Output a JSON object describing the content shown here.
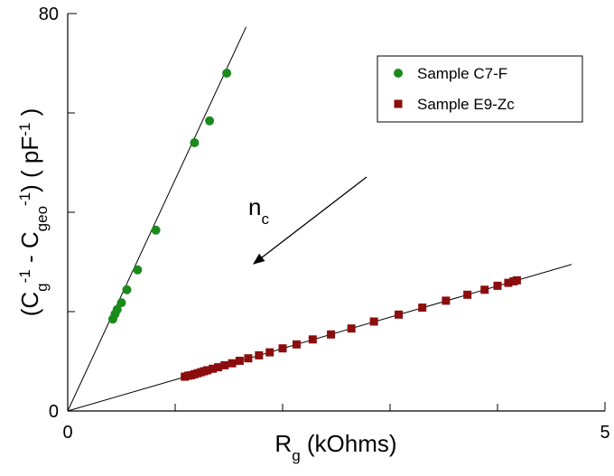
{
  "chart_data": {
    "type": "scatter",
    "xlim": [
      0,
      5
    ],
    "ylim": [
      0,
      80
    ],
    "xticks": [
      0,
      5
    ],
    "yticks": [
      0,
      80
    ],
    "xminor": [
      1,
      2,
      3,
      4
    ],
    "yminor": [
      20,
      40,
      60
    ],
    "xlabel_parts": [
      {
        "text": "R"
      },
      {
        "text": "g",
        "shift": "sub"
      },
      {
        "text": "  (kOhms)"
      }
    ],
    "ylabel_parts": [
      {
        "text": "(C"
      },
      {
        "text": "g",
        "shift": "sub"
      },
      {
        "text": "-1",
        "shift": "super"
      },
      {
        "text": " - C"
      },
      {
        "text": "geo",
        "shift": "sub"
      },
      {
        "text": "-1",
        "shift": "super"
      },
      {
        "text": ")    ( pF"
      },
      {
        "text": "-1",
        "shift": "super"
      },
      {
        "text": " )"
      }
    ],
    "annotation": {
      "text": "n",
      "subscript": "c"
    },
    "legend": "upper right",
    "series": [
      {
        "name": "Sample C7-F",
        "color": "#1a8a1a",
        "marker": "circle",
        "x": [
          0.42,
          0.44,
          0.46,
          0.5,
          0.55,
          0.65,
          0.82,
          1.18,
          1.32,
          1.48
        ],
        "values": [
          18.5,
          19.5,
          20.4,
          21.8,
          24.4,
          28.4,
          36.4,
          54.0,
          58.4,
          68.0
        ],
        "fit": {
          "x": [
            0,
            1.66
          ],
          "y": [
            0,
            77.3
          ]
        }
      },
      {
        "name": "Sample E9-Zc",
        "color": "#8b0d0d",
        "marker": "square",
        "x": [
          1.09,
          1.12,
          1.15,
          1.18,
          1.21,
          1.24,
          1.27,
          1.3,
          1.35,
          1.4,
          1.46,
          1.53,
          1.6,
          1.68,
          1.78,
          1.88,
          2.0,
          2.13,
          2.28,
          2.45,
          2.64,
          2.85,
          3.08,
          3.3,
          3.52,
          3.72,
          3.88,
          4.0,
          4.1,
          4.15,
          4.18
        ],
        "values": [
          6.9,
          7.1,
          7.2,
          7.4,
          7.6,
          7.8,
          8.0,
          8.2,
          8.5,
          8.8,
          9.2,
          9.6,
          10.1,
          10.6,
          11.2,
          11.8,
          12.6,
          13.4,
          14.4,
          15.4,
          16.6,
          18.0,
          19.4,
          20.8,
          22.2,
          23.4,
          24.4,
          25.2,
          25.8,
          26.1,
          26.3
        ],
        "fit": {
          "x": [
            0,
            4.69
          ],
          "y": [
            0,
            29.5
          ]
        }
      }
    ]
  }
}
